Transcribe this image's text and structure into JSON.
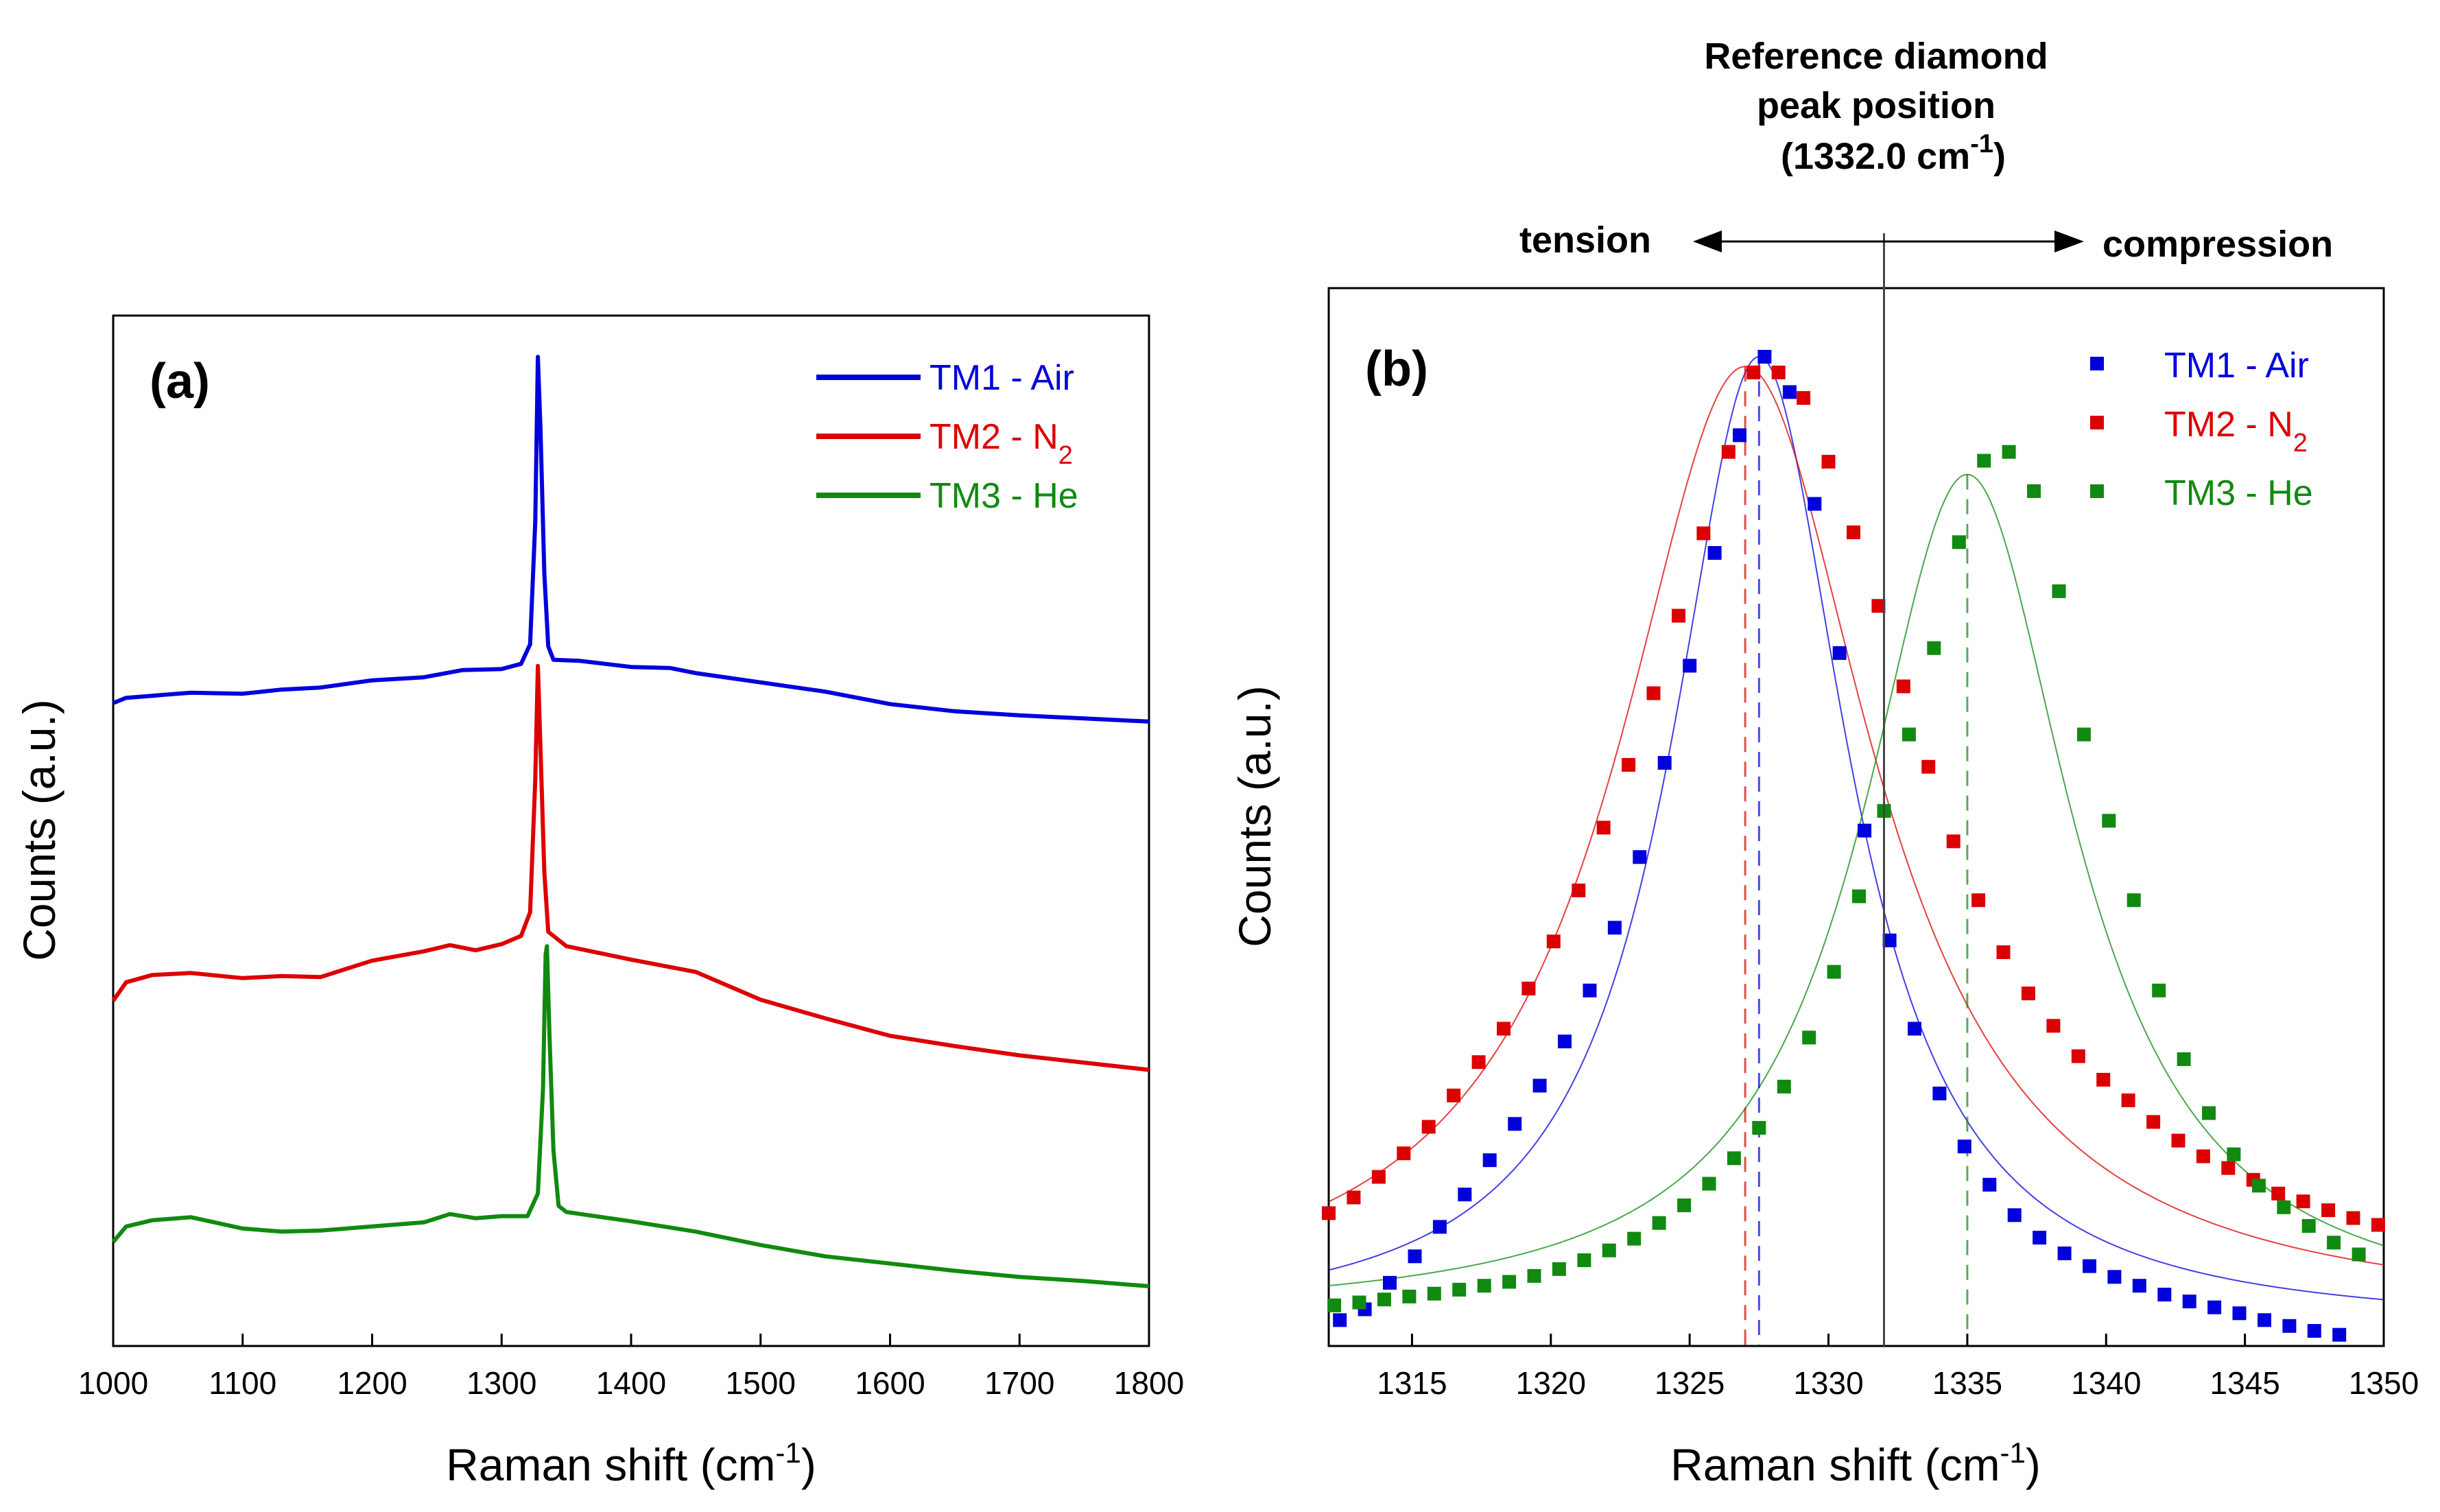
{
  "chart_data": [
    {
      "type": "line",
      "panel_label": "(a)",
      "xlabel": "Raman shift (cm",
      "xlabel_sup": "-1",
      "xlabel_end": ")",
      "ylabel": "Counts (a.u.)",
      "xlim": [
        1000,
        1800
      ],
      "ylim": [
        0,
        100
      ],
      "xticks": [
        "1000",
        "1100",
        "1200",
        "1300",
        "1400",
        "1500",
        "1600",
        "1700",
        "1800"
      ],
      "legend_position": "top-right",
      "series": [
        {
          "name": "TM1 - Air",
          "label_main": "TM1 - Air",
          "label_sub": "",
          "color": "#0000dd",
          "points": [
            [
              1000,
              62.4
            ],
            [
              1010,
              62.9
            ],
            [
              1030,
              63.1
            ],
            [
              1060,
              63.4
            ],
            [
              1100,
              63.3
            ],
            [
              1130,
              63.7
            ],
            [
              1160,
              63.9
            ],
            [
              1200,
              64.6
            ],
            [
              1240,
              64.9
            ],
            [
              1270,
              65.6
            ],
            [
              1300,
              65.7
            ],
            [
              1315,
              66.2
            ],
            [
              1322,
              68.1
            ],
            [
              1326,
              80
            ],
            [
              1328,
              96
            ],
            [
              1330,
              89
            ],
            [
              1333,
              75
            ],
            [
              1336,
              67.9
            ],
            [
              1340,
              66.6
            ],
            [
              1360,
              66.5
            ],
            [
              1400,
              65.9
            ],
            [
              1430,
              65.8
            ],
            [
              1450,
              65.3
            ],
            [
              1500,
              64.4
            ],
            [
              1550,
              63.5
            ],
            [
              1600,
              62.3
            ],
            [
              1650,
              61.6
            ],
            [
              1700,
              61.2
            ],
            [
              1750,
              60.9
            ],
            [
              1800,
              60.6
            ]
          ]
        },
        {
          "name": "TM2 - N2",
          "label_main": "TM2 - N",
          "label_sub": "2",
          "color": "#dd0000",
          "points": [
            [
              1000,
              33.5
            ],
            [
              1010,
              35.3
            ],
            [
              1030,
              36.0
            ],
            [
              1060,
              36.2
            ],
            [
              1100,
              35.7
            ],
            [
              1130,
              35.9
            ],
            [
              1160,
              35.8
            ],
            [
              1200,
              37.4
            ],
            [
              1240,
              38.3
            ],
            [
              1260,
              38.9
            ],
            [
              1280,
              38.4
            ],
            [
              1300,
              39.0
            ],
            [
              1315,
              39.8
            ],
            [
              1322,
              42.1
            ],
            [
              1326,
              55
            ],
            [
              1328,
              66
            ],
            [
              1330,
              58
            ],
            [
              1333,
              46
            ],
            [
              1336,
              40.2
            ],
            [
              1350,
              38.8
            ],
            [
              1400,
              37.5
            ],
            [
              1450,
              36.3
            ],
            [
              1500,
              33.6
            ],
            [
              1550,
              31.8
            ],
            [
              1600,
              30.1
            ],
            [
              1650,
              29.1
            ],
            [
              1700,
              28.2
            ],
            [
              1750,
              27.5
            ],
            [
              1800,
              26.8
            ]
          ]
        },
        {
          "name": "TM3 - He",
          "label_main": "TM3 - He",
          "label_sub": "",
          "color": "#108a10",
          "points": [
            [
              1000,
              10.1
            ],
            [
              1010,
              11.6
            ],
            [
              1030,
              12.2
            ],
            [
              1060,
              12.5
            ],
            [
              1100,
              11.4
            ],
            [
              1130,
              11.1
            ],
            [
              1160,
              11.2
            ],
            [
              1200,
              11.6
            ],
            [
              1240,
              12.0
            ],
            [
              1260,
              12.8
            ],
            [
              1280,
              12.4
            ],
            [
              1300,
              12.6
            ],
            [
              1320,
              12.6
            ],
            [
              1328,
              14.8
            ],
            [
              1332,
              25
            ],
            [
              1334,
              38
            ],
            [
              1335,
              38.8
            ],
            [
              1337,
              30
            ],
            [
              1340,
              19
            ],
            [
              1344,
              13.6
            ],
            [
              1350,
              13.0
            ],
            [
              1400,
              12.1
            ],
            [
              1450,
              11.1
            ],
            [
              1500,
              9.8
            ],
            [
              1550,
              8.7
            ],
            [
              1600,
              8.0
            ],
            [
              1650,
              7.3
            ],
            [
              1700,
              6.7
            ],
            [
              1750,
              6.3
            ],
            [
              1800,
              5.8
            ]
          ]
        }
      ]
    },
    {
      "type": "scatter",
      "panel_label": "(b)",
      "xlabel": "Raman shift (cm",
      "xlabel_sup": "-1",
      "xlabel_end": ")",
      "ylabel": "Counts (a.u.)",
      "xlim": [
        1312,
        1350
      ],
      "ylim": [
        0,
        100
      ],
      "xticks": [
        "1315",
        "1320",
        "1325",
        "1330",
        "1335",
        "1340",
        "1345",
        "1350"
      ],
      "legend_position": "top-right",
      "series": [
        {
          "name": "TM1 - Air",
          "label_main": "TM1 - Air",
          "label_sub": "",
          "color": "#0000dd",
          "peak_center": 1327.5,
          "peak_height": 99,
          "hwhm": 3.9,
          "baseline": 1,
          "x": [
            1312.4,
            1313.3,
            1314.2,
            1315.1,
            1316.0,
            1316.9,
            1317.8,
            1318.7,
            1319.6,
            1320.5,
            1321.4,
            1322.3,
            1323.2,
            1324.1,
            1325.0,
            1325.9,
            1326.8,
            1327.7,
            1328.6,
            1329.5,
            1330.4,
            1331.3,
            1332.2,
            1333.1,
            1334.0,
            1334.9,
            1335.8,
            1336.7,
            1337.6,
            1338.5,
            1339.4,
            1340.3,
            1341.2,
            1342.1,
            1343.0,
            1343.9,
            1344.8,
            1345.7,
            1346.6,
            1347.5,
            1348.4
          ],
          "y": [
            1.8,
            2.9,
            5.6,
            8.3,
            11.3,
            14.6,
            18.1,
            21.8,
            25.7,
            30.2,
            35.4,
            41.8,
            49.0,
            58.6,
            68.5,
            80.0,
            92.0,
            100.0,
            96.4,
            85.0,
            69.8,
            51.7,
            40.5,
            31.5,
            24.9,
            19.5,
            15.6,
            12.5,
            10.2,
            8.6,
            7.3,
            6.2,
            5.3,
            4.4,
            3.7,
            3.1,
            2.5,
            1.8,
            1.2,
            0.7,
            0.3
          ]
        },
        {
          "name": "TM2 - N2",
          "label_main": "TM2 - N",
          "label_sub": "",
          "color": "#dd0000",
          "label_sub2": "2",
          "peak_center": 1327.0,
          "peak_height": 97,
          "hwhm": 5.6,
          "baseline": 2,
          "x": [
            1312.0,
            1312.9,
            1313.8,
            1314.7,
            1315.6,
            1316.5,
            1317.4,
            1318.3,
            1319.2,
            1320.1,
            1321.0,
            1321.9,
            1322.8,
            1323.7,
            1324.6,
            1325.5,
            1326.4,
            1327.3,
            1328.2,
            1329.1,
            1330.0,
            1330.9,
            1331.8,
            1332.7,
            1333.6,
            1334.5,
            1335.4,
            1336.3,
            1337.2,
            1338.1,
            1339.0,
            1339.9,
            1340.8,
            1341.7,
            1342.6,
            1343.5,
            1344.4,
            1345.3,
            1346.2,
            1347.1,
            1348.0,
            1348.9,
            1349.8
          ],
          "y": [
            12.7,
            14.3,
            16.4,
            18.8,
            21.5,
            24.7,
            28.1,
            31.5,
            35.6,
            40.4,
            45.6,
            52.0,
            58.4,
            65.7,
            73.6,
            82.0,
            90.3,
            98.4,
            98.4,
            95.8,
            89.3,
            82.1,
            74.6,
            66.4,
            58.2,
            50.6,
            44.6,
            39.3,
            35.1,
            31.8,
            28.7,
            26.3,
            24.2,
            22.0,
            20.1,
            18.5,
            17.3,
            16.1,
            14.7,
            13.9,
            13.0,
            12.2,
            11.5
          ]
        },
        {
          "name": "TM3 - He",
          "label_main": "TM3 - He",
          "label_sub": "",
          "color": "#108a10",
          "peak_center": 1335.0,
          "peak_height": 86,
          "hwhm": 4.6,
          "baseline": 2,
          "x": [
            1312.2,
            1313.1,
            1314.0,
            1314.9,
            1315.8,
            1316.7,
            1317.6,
            1318.5,
            1319.4,
            1320.3,
            1321.2,
            1322.1,
            1323.0,
            1323.9,
            1324.8,
            1325.7,
            1326.6,
            1327.5,
            1328.4,
            1329.3,
            1330.2,
            1331.1,
            1332.0,
            1332.9,
            1333.8,
            1334.7,
            1335.6,
            1336.5,
            1337.4,
            1338.3,
            1339.2,
            1340.1,
            1341.0,
            1341.9,
            1342.8,
            1343.7,
            1344.6,
            1345.5,
            1346.4,
            1347.3,
            1348.2,
            1349.1
          ],
          "y": [
            3.3,
            3.6,
            3.9,
            4.2,
            4.5,
            4.9,
            5.3,
            5.7,
            6.3,
            7.0,
            7.9,
            8.9,
            10.1,
            11.7,
            13.5,
            15.7,
            18.3,
            21.4,
            25.6,
            30.6,
            37.3,
            45.0,
            53.7,
            61.5,
            70.3,
            81.1,
            89.4,
            90.3,
            86.3,
            76.1,
            61.5,
            52.7,
            44.6,
            35.4,
            28.4,
            22.9,
            18.7,
            15.5,
            13.3,
            11.4,
            9.7,
            8.5
          ]
        }
      ]
    }
  ],
  "annotations": {
    "reference_line1": "Reference diamond",
    "reference_line2": "peak  position",
    "reference_line3_main": "(1332.0 cm",
    "reference_line3_sup": "-1",
    "reference_line3_end": ")",
    "reference_x": 1332.0,
    "tension": "tension",
    "compression": "compression"
  }
}
